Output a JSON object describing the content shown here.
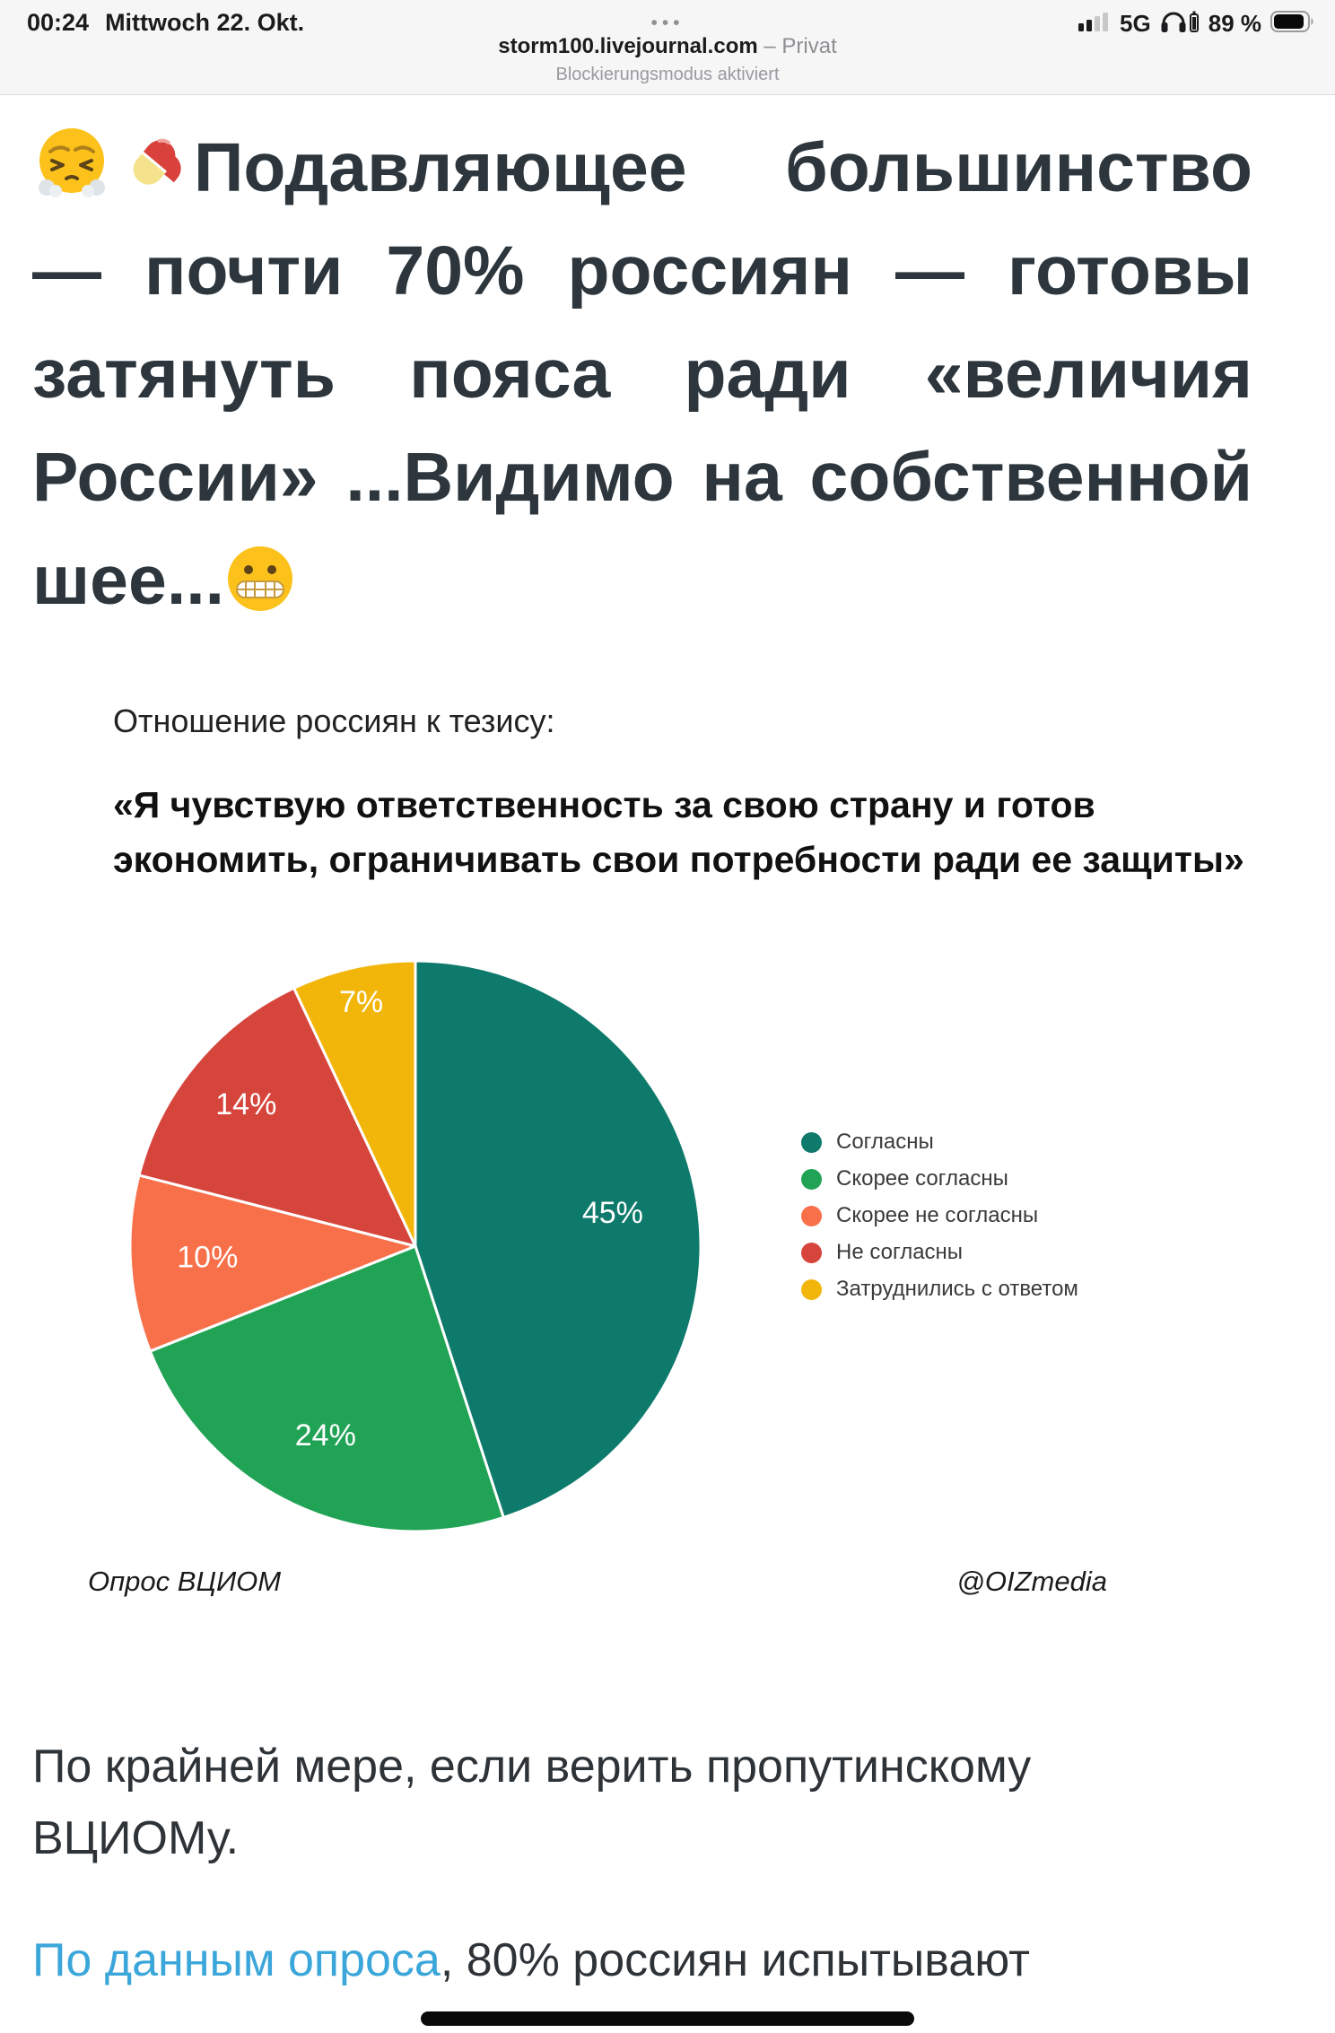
{
  "status_bar": {
    "time": "00:24",
    "date": "Mittwoch 22. Okt.",
    "network": "5G",
    "battery_percent": "89 %",
    "battery_level": 0.89,
    "signal_bars_filled": 2,
    "icons": [
      "cellular-signal-icon",
      "headphones-battery-icon",
      "battery-icon"
    ]
  },
  "browser": {
    "menu_dots": "•••",
    "domain": "storm100.livejournal.com",
    "privacy_label": " – Privat",
    "status_message": "Blockierungsmodus aktiviert"
  },
  "post": {
    "headline_text": "Подавляющее большинство — почти 70% россиян — готовы затянуть пояса ради «величия России» ...Видимо на собственной шее...",
    "headline_emojis": {
      "prefix": [
        "face-with-steam-emoji",
        "pill-emoji"
      ],
      "suffix": "grimacing-face-emoji"
    },
    "paragraph": "По крайней мере, если верить пропутинскому ВЦИОМу.",
    "link_text": "По данным опроса",
    "after_link_text": ", 80% россиян испытывают",
    "link_color": "#3BA6D9",
    "headline_color": "#2c363c"
  },
  "chart_data": {
    "type": "pie",
    "title": "Отношение россиян к тезису:",
    "quote": "«Я чувствую ответственность за свою страну и готов экономить, ограничивать свои потребности ради ее защиты»",
    "slices": [
      {
        "label": "Согласны",
        "value": 45,
        "color": "#0E7A6B"
      },
      {
        "label": "Скорее согласны",
        "value": 24,
        "color": "#21A355"
      },
      {
        "label": "Скорее не согласны",
        "value": 10,
        "color": "#F8704A"
      },
      {
        "label": "Не согласны",
        "value": 14,
        "color": "#D6453C"
      },
      {
        "label": "Затруднились с ответом",
        "value": 7,
        "color": "#F2B60B"
      }
    ],
    "start_angle_deg": -90,
    "direction": "clockwise",
    "value_label_format": "percent",
    "value_label_color": "#ffffff",
    "legend_position": "right",
    "source_caption": "Опрос ВЦИОМ",
    "credit_caption": "@OIZmedia"
  }
}
